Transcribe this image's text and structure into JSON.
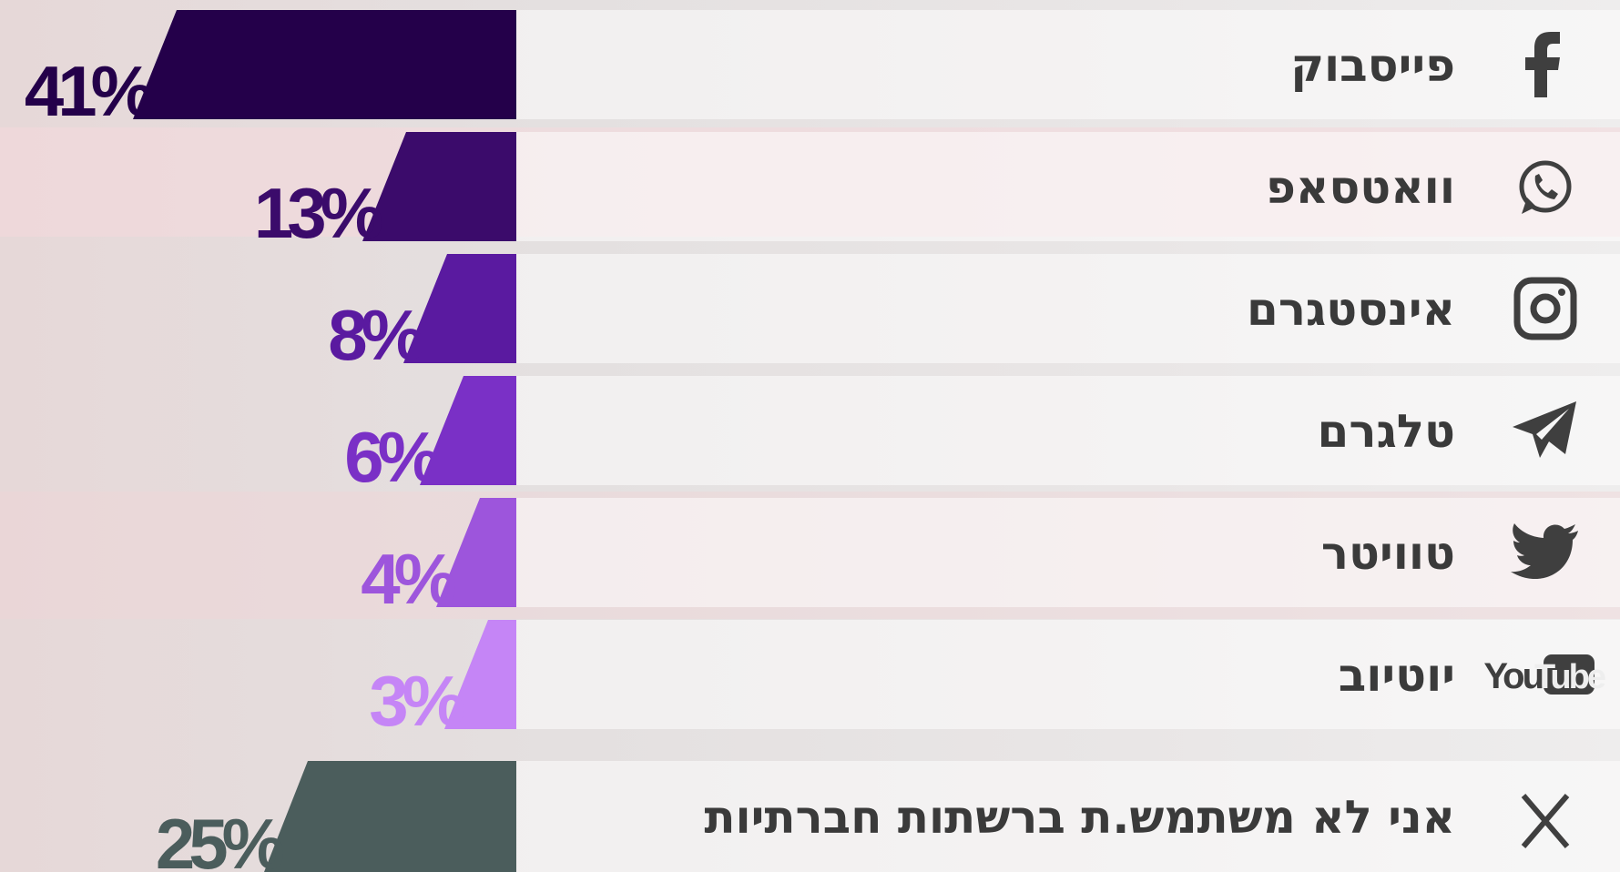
{
  "chart_data": {
    "type": "bar",
    "categories": [
      "פייסבוק",
      "וואטסאפ",
      "אינסטגרם",
      "טלגרם",
      "טוויטר",
      "יוטיוב",
      "אני לא משתמש.ת ברשתות חברתיות"
    ],
    "values": [
      41,
      13,
      8,
      6,
      4,
      3,
      25
    ],
    "value_labels": [
      "41%",
      "13%",
      "8%",
      "6%",
      "4%",
      "3%",
      "25%"
    ],
    "colors": [
      "#24004a",
      "#3b0b6b",
      "#5a1aa0",
      "#7a30c6",
      "#9d55dc",
      "#c585f6",
      "#4b5d5c"
    ],
    "logo_text": [
      "You",
      "Tube"
    ]
  }
}
